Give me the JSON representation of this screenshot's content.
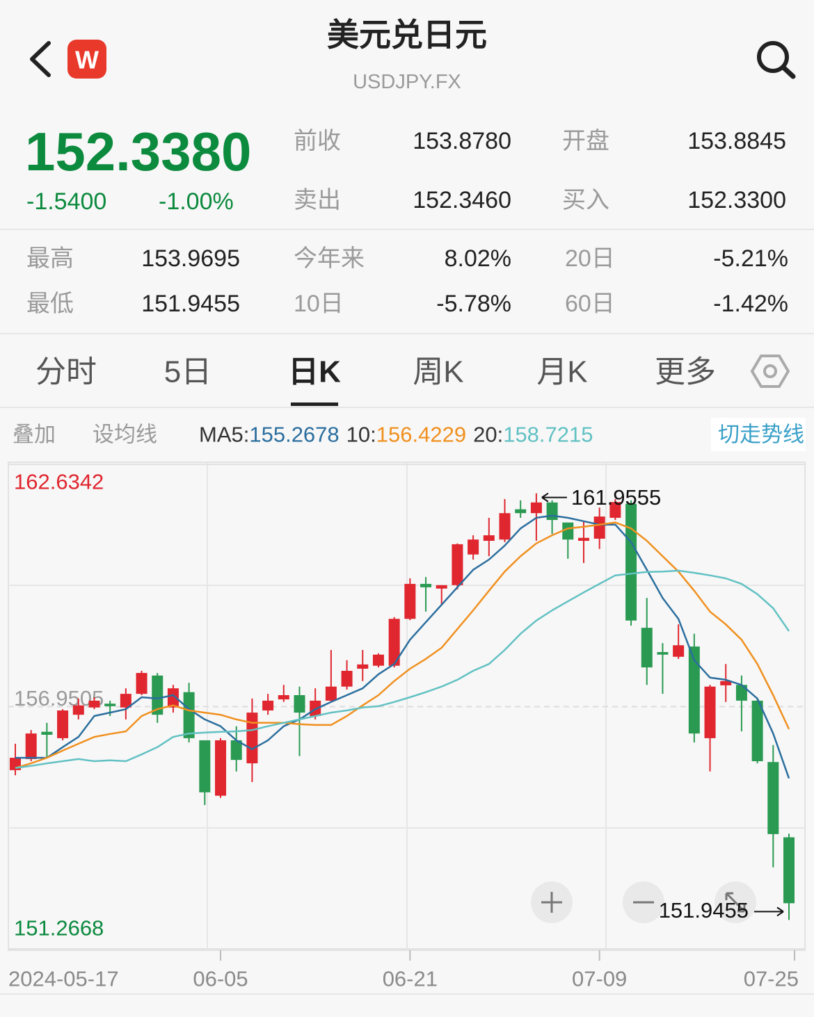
{
  "header": {
    "title": "美元兑日元",
    "subtitle": "USDJPY.FX",
    "logo": "W"
  },
  "quote": {
    "price": "152.3380",
    "change": "-1.5400",
    "change_pct": "-1.00%"
  },
  "stats": [
    [
      {
        "label": "前收",
        "value": "153.8780"
      },
      {
        "label": "开盘",
        "value": "153.8845"
      }
    ],
    [
      {
        "label": "卖出",
        "value": "152.3460"
      },
      {
        "label": "买入",
        "value": "152.3300"
      }
    ]
  ],
  "stats2": [
    [
      {
        "label": "最高",
        "value": "153.9695"
      },
      {
        "label": "今年来",
        "value": "8.02%"
      },
      {
        "label": "20日",
        "value": "-5.21%"
      }
    ],
    [
      {
        "label": "最低",
        "value": "151.9455"
      },
      {
        "label": "10日",
        "value": "-5.78%"
      },
      {
        "label": "60日",
        "value": "-1.42%"
      }
    ]
  ],
  "tabs": [
    "分时",
    "5日",
    "日K",
    "周K",
    "月K",
    "更多"
  ],
  "active_tab": 2,
  "toolbar": {
    "overlay": "叠加",
    "set_ma": "设均线",
    "switch": "切走势线"
  },
  "chart_data": {
    "type": "candlestick",
    "categories": [
      "2024-05-17",
      null,
      null,
      null,
      null,
      null,
      null,
      null,
      null,
      null,
      null,
      null,
      null,
      "06-05",
      null,
      null,
      null,
      null,
      null,
      null,
      null,
      null,
      null,
      null,
      null,
      "06-21",
      null,
      null,
      null,
      null,
      null,
      null,
      null,
      null,
      null,
      null,
      null,
      "07-09",
      null,
      null,
      null,
      null,
      null,
      null,
      null,
      null,
      null,
      null,
      null,
      "07-25"
    ],
    "open": [
      155.46,
      155.72,
      156.36,
      156.21,
      156.76,
      156.93,
      157.02,
      156.93,
      157.25,
      157.68,
      156.93,
      157.29,
      156.16,
      154.86,
      156.16,
      155.62,
      156.86,
      157.12,
      157.22,
      156.73,
      157.09,
      157.42,
      157.84,
      157.91,
      157.91,
      159.01,
      159.83,
      159.72,
      159.8,
      160.52,
      160.84,
      160.87,
      161.58,
      161.49,
      161.74,
      161.27,
      160.84,
      160.89,
      161.38,
      161.71,
      158.8,
      158.23,
      158.12,
      158.36,
      156.21,
      157.45,
      157.46,
      157.09,
      155.65,
      153.8845
    ],
    "high": [
      156.08,
      156.4,
      156.57,
      156.89,
      157.14,
      157.17,
      157.09,
      157.38,
      157.79,
      157.74,
      157.46,
      157.51,
      156.16,
      156.21,
      156.49,
      157.14,
      157.25,
      157.46,
      157.42,
      157.38,
      158.28,
      158.04,
      158.28,
      158.2,
      159.05,
      159.96,
      159.99,
      159.8,
      160.78,
      160.97,
      161.38,
      161.82,
      161.79,
      161.9555,
      161.79,
      161.27,
      161.3,
      161.62,
      161.82,
      161.79,
      159.5,
      158.44,
      158.88,
      158.66,
      157.46,
      157.95,
      157.68,
      157.14,
      156.05,
      153.9695
    ],
    "low": [
      155.34,
      155.67,
      155.75,
      156.16,
      156.65,
      156.89,
      156.73,
      156.65,
      157.22,
      156.57,
      156.81,
      156.11,
      154.64,
      154.81,
      155.43,
      155.18,
      156.76,
      157.06,
      155.79,
      156.65,
      157.06,
      157.35,
      157.55,
      157.87,
      157.87,
      158.98,
      159.18,
      159.34,
      159.7,
      160.4,
      160.48,
      160.81,
      161.38,
      160.84,
      161.0,
      160.42,
      160.32,
      160.65,
      161.33,
      158.85,
      157.46,
      157.25,
      158.07,
      156.11,
      155.43,
      157.06,
      156.37,
      155.62,
      153.18,
      151.9455
    ],
    "close": [
      155.75,
      156.32,
      156.29,
      156.86,
      156.98,
      157.09,
      156.96,
      157.25,
      157.74,
      156.76,
      157.38,
      156.21,
      154.94,
      156.16,
      155.7,
      156.81,
      157.09,
      157.22,
      156.81,
      157.09,
      157.42,
      157.79,
      157.94,
      158.17,
      159.01,
      159.83,
      159.75,
      159.8,
      160.76,
      160.87,
      160.97,
      161.49,
      161.49,
      161.74,
      161.33,
      160.87,
      160.91,
      161.41,
      161.75,
      158.97,
      157.87,
      158.17,
      158.39,
      156.32,
      157.42,
      157.55,
      157.09,
      155.67,
      153.96,
      152.338
    ],
    "up_color": "#e0262f",
    "down_color": "#2a9a52",
    "series": [
      {
        "name": "MA5:",
        "color": "#2b6e9e",
        "values": [
          155.75,
          155.75,
          155.75,
          156.0,
          156.24,
          156.73,
          156.81,
          156.89,
          157.17,
          157.14,
          157.22,
          156.89,
          156.65,
          156.49,
          156.16,
          155.95,
          156.16,
          156.49,
          156.65,
          156.89,
          157.06,
          157.22,
          157.38,
          157.71,
          157.95,
          158.52,
          158.93,
          159.34,
          159.75,
          160.16,
          160.4,
          160.73,
          161.13,
          161.38,
          161.43,
          161.38,
          161.3,
          161.22,
          161.22,
          160.81,
          160.16,
          159.5,
          159.01,
          158.04,
          157.63,
          157.58,
          157.46,
          157.14,
          156.32,
          155.2678
        ]
      },
      {
        "name": "10:",
        "color": "#f0901f",
        "values": [
          155.51,
          155.62,
          155.75,
          155.92,
          156.08,
          156.24,
          156.31,
          156.37,
          156.73,
          156.89,
          156.98,
          156.86,
          156.81,
          156.76,
          156.65,
          156.57,
          156.57,
          156.57,
          156.54,
          156.52,
          156.52,
          156.73,
          156.98,
          157.22,
          157.55,
          157.84,
          158.07,
          158.33,
          158.77,
          159.21,
          159.67,
          160.12,
          160.48,
          160.78,
          160.97,
          161.13,
          161.17,
          161.22,
          161.27,
          161.13,
          160.84,
          160.48,
          160.12,
          159.67,
          159.18,
          158.88,
          158.52,
          157.95,
          157.22,
          156.4229
        ]
      },
      {
        "name": "20:",
        "color": "#62c1c3",
        "values": [
          155.51,
          155.56,
          155.62,
          155.67,
          155.72,
          155.67,
          155.69,
          155.67,
          155.83,
          156.0,
          156.24,
          156.32,
          156.34,
          156.36,
          156.37,
          156.4,
          156.49,
          156.57,
          156.65,
          156.73,
          156.81,
          156.86,
          156.93,
          156.96,
          157.06,
          157.17,
          157.29,
          157.42,
          157.58,
          157.79,
          157.95,
          158.28,
          158.66,
          158.97,
          159.21,
          159.42,
          159.63,
          159.83,
          160.03,
          160.07,
          160.11,
          160.12,
          160.14,
          160.09,
          160.03,
          159.96,
          159.83,
          159.59,
          159.26,
          158.7215
        ]
      }
    ],
    "ylim": [
      151.2668,
      162.6342
    ],
    "yticks": [
      151.2668,
      156.9505,
      162.6342
    ],
    "ytick_colors": [
      "#0c8a3e",
      "#9a9a9a",
      "#e0262f"
    ],
    "grid": true
  }
}
